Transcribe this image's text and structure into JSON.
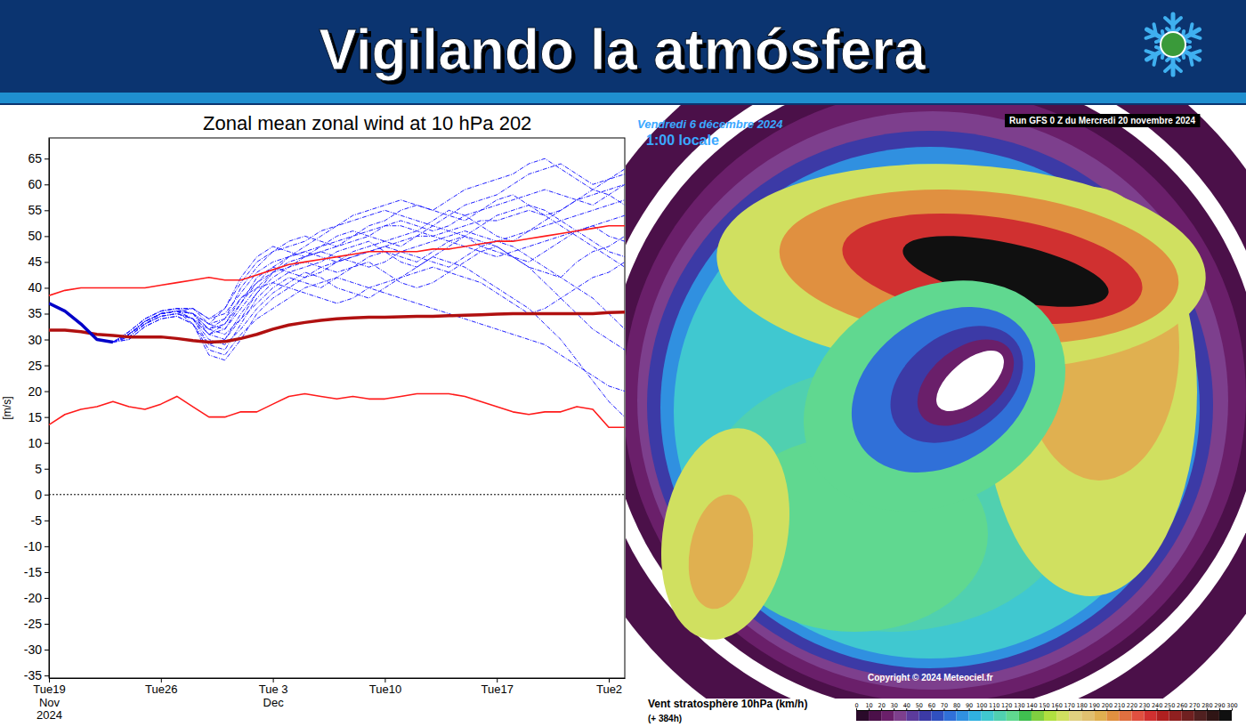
{
  "header": {
    "title": "Vigilando la atmósfera"
  },
  "chart_data": [
    {
      "type": "line",
      "title": "Zonal mean zonal wind at 10 hPa 202",
      "y_label": "[m/s]",
      "x": [
        "2024-11-19",
        "2024-11-20",
        "2024-11-21",
        "2024-11-22",
        "2024-11-23",
        "2024-11-24",
        "2024-11-25",
        "2024-11-26",
        "2024-11-27",
        "2024-11-28",
        "2024-11-29",
        "2024-11-30",
        "2024-12-01",
        "2024-12-02",
        "2024-12-03",
        "2024-12-04",
        "2024-12-05",
        "2024-12-06",
        "2024-12-07",
        "2024-12-08",
        "2024-12-09",
        "2024-12-10",
        "2024-12-11",
        "2024-12-12",
        "2024-12-13",
        "2024-12-14",
        "2024-12-15",
        "2024-12-16",
        "2024-12-17",
        "2024-12-18",
        "2024-12-19",
        "2024-12-20",
        "2024-12-21",
        "2024-12-22",
        "2024-12-23",
        "2024-12-24",
        "2024-12-25"
      ],
      "xlim": [
        "2024-11-19",
        "2024-12-25"
      ],
      "xticks": [
        {
          "value": "2024-11-19",
          "label": "Tue19\nNov\n2024"
        },
        {
          "value": "2024-11-26",
          "label": "Tue26"
        },
        {
          "value": "2024-12-03",
          "label": "Tue 3\nDec"
        },
        {
          "value": "2024-12-10",
          "label": "Tue10"
        },
        {
          "value": "2024-12-17",
          "label": "Tue17"
        },
        {
          "value": "2024-12-24",
          "label": "Tue2"
        }
      ],
      "ylim": [
        -35.5,
        69
      ],
      "yticks": [
        -35,
        -30,
        -25,
        -20,
        -15,
        -10,
        -5,
        0,
        5,
        10,
        15,
        20,
        25,
        30,
        35,
        40,
        45,
        50,
        55,
        60,
        65
      ],
      "hline": 0,
      "grid": false,
      "series": [
        {
          "color": "#2020ff",
          "line_style": "dashed",
          "values": [
            null,
            null,
            null,
            null,
            29.5,
            31,
            33.5,
            35,
            35.5,
            35,
            33,
            36,
            42,
            46,
            48,
            47,
            46,
            47,
            48,
            49,
            50,
            52,
            53,
            52,
            51,
            52,
            54,
            55,
            56,
            57,
            58,
            59,
            58,
            57,
            56,
            58,
            60
          ]
        },
        {
          "color": "#2020ff",
          "line_style": "dashed",
          "values": [
            null,
            null,
            null,
            null,
            29.5,
            30.5,
            33,
            34.5,
            35,
            34,
            31,
            33,
            38,
            41,
            43,
            44,
            45,
            44,
            43,
            44,
            46,
            47,
            46,
            45,
            47,
            49,
            50,
            48,
            47,
            46,
            45,
            47,
            49,
            51,
            52,
            50,
            49
          ]
        },
        {
          "color": "#2020ff",
          "line_style": "dashed",
          "values": [
            null,
            null,
            null,
            null,
            29.5,
            31,
            33.5,
            35,
            35.5,
            33,
            29,
            30,
            35,
            39,
            42,
            44,
            46,
            48,
            50,
            51,
            50,
            49,
            48,
            50,
            52,
            54,
            56,
            57,
            58,
            60,
            62,
            63,
            64,
            62,
            60,
            61,
            63
          ]
        },
        {
          "color": "#2020ff",
          "line_style": "dashed",
          "values": [
            null,
            null,
            null,
            null,
            29.5,
            31.5,
            34,
            35.5,
            36,
            35,
            32,
            31,
            34,
            37,
            40,
            42,
            41,
            40,
            42,
            44,
            45,
            43,
            41,
            40,
            41,
            43,
            45,
            47,
            48,
            46,
            44,
            43,
            42,
            45,
            47,
            48,
            50
          ]
        },
        {
          "color": "#2020ff",
          "line_style": "dashed",
          "values": [
            null,
            null,
            null,
            null,
            29.5,
            31,
            33.5,
            35,
            35.5,
            36,
            34,
            35,
            39,
            43,
            45,
            46,
            48,
            50,
            52,
            53,
            54,
            55,
            54,
            53,
            52,
            51,
            50,
            49,
            48,
            46,
            44,
            41,
            38,
            35,
            32,
            30,
            28
          ]
        },
        {
          "color": "#2020ff",
          "line_style": "dashed",
          "values": [
            null,
            null,
            null,
            null,
            29.5,
            30.5,
            33,
            34.5,
            35,
            34,
            30,
            29,
            32,
            36,
            39,
            41,
            43,
            42,
            40,
            39,
            38,
            40,
            42,
            44,
            46,
            45,
            44,
            42,
            40,
            38,
            36,
            33,
            30,
            26,
            22,
            18,
            15
          ]
        },
        {
          "color": "#2020ff",
          "line_style": "dashed",
          "values": [
            null,
            null,
            null,
            null,
            29.5,
            31,
            33.5,
            35,
            35.5,
            35,
            32,
            34,
            40,
            44,
            47,
            49,
            50,
            49,
            48,
            50,
            52,
            53,
            55,
            56,
            55,
            54,
            53,
            55,
            57,
            58,
            56,
            54,
            55,
            57,
            59,
            61,
            62
          ]
        },
        {
          "color": "#2020ff",
          "line_style": "dashed",
          "values": [
            null,
            null,
            null,
            null,
            29.5,
            30,
            32.5,
            34,
            34.5,
            33,
            27,
            26,
            30,
            35,
            38,
            40,
            42,
            44,
            45,
            46,
            47,
            48,
            47,
            46,
            45,
            44,
            46,
            48,
            49,
            50,
            51,
            52,
            53,
            54,
            55,
            56,
            57
          ]
        },
        {
          "color": "#2020ff",
          "line_style": "dashed",
          "values": [
            null,
            null,
            null,
            null,
            29.5,
            31.5,
            34,
            35.5,
            36,
            36,
            33,
            32,
            36,
            40,
            43,
            45,
            46,
            47,
            46,
            45,
            44,
            45,
            47,
            48,
            49,
            50,
            51,
            50,
            49,
            48,
            46,
            44,
            42,
            40,
            38,
            35,
            32
          ]
        },
        {
          "color": "#2020ff",
          "line_style": "dashed",
          "values": [
            null,
            null,
            null,
            null,
            29.5,
            31,
            33.5,
            35,
            35.5,
            34,
            31,
            32,
            37,
            42,
            44,
            43,
            42,
            43,
            45,
            47,
            48,
            49,
            50,
            51,
            53,
            55,
            54,
            52,
            50,
            49,
            51,
            53,
            55,
            57,
            58,
            59,
            60
          ]
        },
        {
          "color": "#2020ff",
          "line_style": "dashed",
          "values": [
            null,
            null,
            null,
            null,
            29.5,
            31,
            33,
            35,
            35.5,
            35,
            33,
            34,
            38,
            40,
            41,
            40,
            39,
            38,
            37,
            38,
            40,
            41,
            42,
            43,
            44,
            43,
            42,
            41,
            39,
            37,
            35,
            36,
            38,
            40,
            42,
            43,
            45
          ]
        },
        {
          "color": "#2020ff",
          "line_style": "dashed",
          "values": [
            null,
            null,
            null,
            null,
            29.5,
            30.5,
            33,
            34.5,
            35,
            34,
            29,
            28,
            33,
            38,
            41,
            43,
            44,
            45,
            47,
            48,
            49,
            47,
            45,
            44,
            46,
            48,
            50,
            52,
            54,
            55,
            56,
            55,
            53,
            51,
            49,
            47,
            46
          ]
        },
        {
          "color": "#2020ff",
          "line_style": "dashed",
          "values": [
            null,
            null,
            null,
            null,
            29.5,
            31.5,
            34,
            35.5,
            36,
            36,
            34,
            36,
            41,
            45,
            47,
            48,
            49,
            51,
            52,
            54,
            55,
            56,
            57,
            56,
            55,
            57,
            59,
            60,
            61,
            62,
            64,
            65,
            63,
            61,
            59,
            58,
            56
          ]
        },
        {
          "color": "#2020ff",
          "line_style": "dashed",
          "values": [
            null,
            null,
            null,
            null,
            29.5,
            30,
            32.5,
            34,
            34.5,
            33,
            28,
            27,
            31,
            34,
            36,
            38,
            40,
            41,
            42,
            41,
            40,
            39,
            38,
            37,
            36,
            35,
            34,
            33,
            32,
            31,
            30,
            29,
            27,
            25,
            23,
            21,
            20
          ]
        },
        {
          "color": "#2020ff",
          "line_style": "dashed",
          "values": [
            null,
            null,
            null,
            null,
            29.5,
            31,
            33.5,
            35,
            35.5,
            35,
            31,
            30,
            34,
            39,
            43,
            46,
            47,
            48,
            49,
            50,
            51,
            52,
            52,
            51,
            50,
            49,
            48,
            47,
            46,
            47,
            48,
            49,
            50,
            51,
            52,
            53,
            54
          ]
        },
        {
          "color": "#2020ff",
          "line_style": "dashed",
          "values": [
            null,
            null,
            null,
            null,
            29.5,
            31,
            33.5,
            35,
            35.5,
            34,
            32,
            33,
            37,
            41,
            44,
            46,
            47,
            46,
            45,
            46,
            47,
            48,
            49,
            50,
            50,
            51,
            52,
            53,
            53,
            54,
            55,
            54,
            52,
            50,
            48,
            46,
            44
          ]
        },
        {
          "color": "#ff1a1a",
          "line_style": "solid",
          "values": [
            38.5,
            39.5,
            40,
            40,
            40,
            40,
            40,
            40.5,
            41,
            41.5,
            42,
            41.5,
            41.5,
            42.5,
            43.5,
            44.5,
            45,
            45.5,
            46,
            46.5,
            47,
            47,
            47,
            47,
            47.5,
            47.5,
            48,
            48.5,
            49,
            49,
            49.5,
            50,
            50.5,
            51,
            51.5,
            52,
            52
          ]
        },
        {
          "color": "#b01010",
          "line_style": "thick",
          "values": [
            31.8,
            31.8,
            31.5,
            31,
            30.8,
            30.5,
            30.5,
            30.5,
            30.2,
            29.8,
            29.5,
            29.6,
            30.2,
            31,
            32,
            32.8,
            33.3,
            33.7,
            34,
            34.2,
            34.3,
            34.3,
            34.4,
            34.5,
            34.5,
            34.6,
            34.7,
            34.8,
            34.9,
            35,
            35,
            35,
            35,
            35,
            35,
            35.2,
            35.3
          ]
        },
        {
          "color": "#ff1a1a",
          "line_style": "solid",
          "values": [
            13.5,
            15.5,
            16.5,
            17,
            18,
            17,
            16.5,
            17.5,
            19,
            17,
            15,
            15,
            16,
            16,
            17.5,
            19,
            19.5,
            19,
            18.5,
            19,
            18.5,
            18.5,
            19,
            19.5,
            19.5,
            19.5,
            19,
            18,
            17,
            16,
            15.5,
            16,
            16,
            17,
            16.5,
            13,
            13
          ]
        },
        {
          "color": "#0000c8",
          "line_style": "thick",
          "values": [
            37,
            35.5,
            33,
            30,
            29.5,
            null,
            null,
            null,
            null,
            null,
            null,
            null,
            null,
            null,
            null,
            null,
            null,
            null,
            null,
            null,
            null,
            null,
            null,
            null,
            null,
            null,
            null,
            null,
            null,
            null,
            null,
            null,
            null,
            null,
            null,
            null,
            null
          ]
        }
      ]
    },
    {
      "type": "map",
      "title": "Vent stratosphère 10hPa (km/h)",
      "subtitle": "(+ 384h)",
      "valid_date": "Vendredi 6 décembre 2024",
      "valid_time": "1:00 locale",
      "run": "Run GFS 0 Z du Mercredi 20 novembre 2024",
      "credit": "Copyright © 2024 Meteociel.fr",
      "colorbar": {
        "range": [
          0,
          300
        ],
        "ticks": [
          0,
          10,
          20,
          30,
          40,
          50,
          60,
          70,
          80,
          90,
          100,
          110,
          120,
          130,
          140,
          150,
          160,
          170,
          180,
          190,
          200,
          210,
          220,
          230,
          240,
          250,
          260,
          270,
          280,
          290,
          300
        ],
        "colors": [
          "#2a0a2a",
          "#4b1049",
          "#6a1f6a",
          "#7d3f8d",
          "#5c3b9c",
          "#3c3aa6",
          "#3050c0",
          "#3070d8",
          "#3090e0",
          "#30b0e0",
          "#40c8d0",
          "#50d0b0",
          "#60d890",
          "#40c050",
          "#80d040",
          "#b0e040",
          "#d0e060",
          "#e0d080",
          "#e0c070",
          "#e0b050",
          "#e09040",
          "#e07040",
          "#e05040",
          "#d03030",
          "#b02020",
          "#902020",
          "#702020",
          "#502020",
          "#301515",
          "#101010"
        ]
      }
    }
  ]
}
